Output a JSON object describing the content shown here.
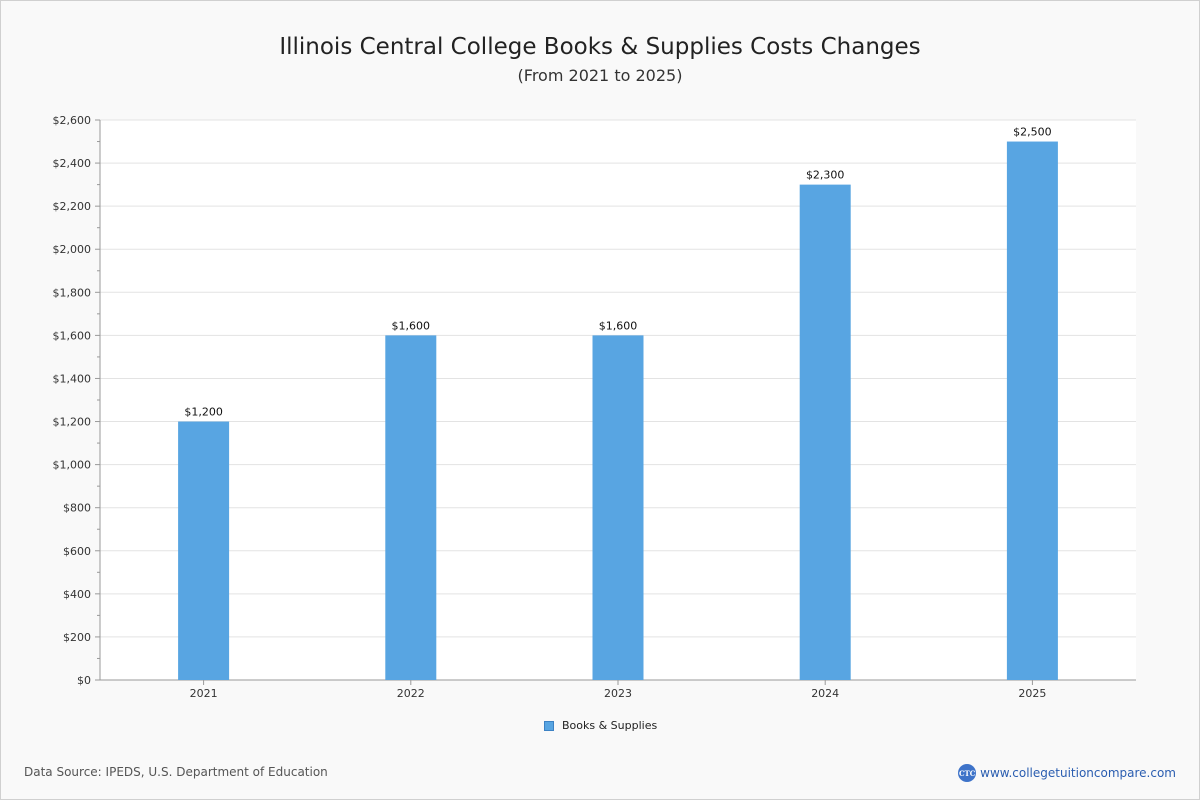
{
  "header": {
    "title": "Illinois Central College Books & Supplies Costs Changes",
    "subtitle": "(From 2021 to 2025)"
  },
  "colors": {
    "bar": "#58a5e2",
    "plot_background": "#ffffff",
    "grid": "#e3e3e3"
  },
  "chart_data": {
    "type": "bar",
    "title": "Illinois Central College Books & Supplies Costs Changes",
    "subtitle": "(From 2021 to 2025)",
    "categories": [
      "2021",
      "2022",
      "2023",
      "2024",
      "2025"
    ],
    "series": [
      {
        "name": "Books & Supplies",
        "values": [
          1200,
          1600,
          1600,
          2300,
          2500
        ],
        "labels": [
          "$1,200",
          "$1,600",
          "$1,600",
          "$2,300",
          "$2,500"
        ]
      }
    ],
    "ylim": [
      0,
      2600
    ],
    "yticks": [
      0,
      200,
      400,
      600,
      800,
      1000,
      1200,
      1400,
      1600,
      1800,
      2000,
      2200,
      2400,
      2600
    ],
    "ytick_labels": [
      "$0",
      "$200",
      "$400",
      "$600",
      "$800",
      "$1,000",
      "$1,200",
      "$1,400",
      "$1,600",
      "$1,800",
      "$2,000",
      "$2,200",
      "$2,400",
      "$2,600"
    ],
    "grid": true,
    "legend_position": "bottom-center"
  },
  "legend": {
    "label": "Books & Supplies"
  },
  "footer": {
    "source": "Data Source: IPEDS, U.S. Department of Education",
    "brand_logo_text": "CTC",
    "brand_url": "www.collegetuitioncompare.com"
  }
}
